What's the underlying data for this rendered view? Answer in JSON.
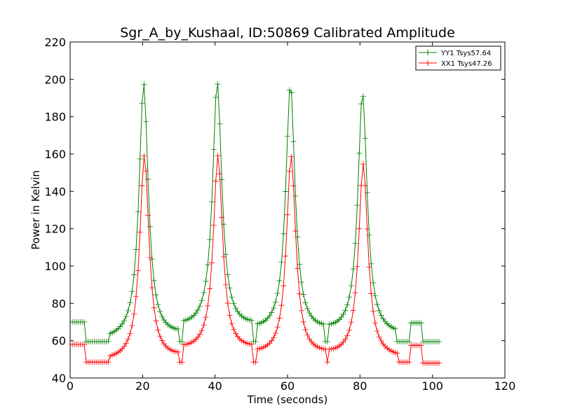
{
  "chart_data": {
    "type": "line",
    "title": "Sgr_A_by_Kushaal, ID:50869 Calibrated Amplitude",
    "xlabel": "Time (seconds)",
    "ylabel": "Power in Kelvin",
    "xlim": [
      0,
      120
    ],
    "ylim": [
      40,
      220
    ],
    "xticks": [
      0,
      20,
      40,
      60,
      80,
      100,
      120
    ],
    "yticks": [
      40,
      60,
      80,
      100,
      120,
      140,
      160,
      180,
      200,
      220
    ],
    "grid": false,
    "legend_position": "top-right",
    "marker": "+",
    "series": [
      {
        "name": "YY1 Tsys57.64",
        "color": "#008000",
        "base_levels": [
          {
            "x_start": 0.5,
            "x_end": 4,
            "value": 70
          },
          {
            "x_start": 4,
            "x_end": 94,
            "value": 59.5
          },
          {
            "x_start": 94,
            "x_end": 97,
            "value": 69.5
          },
          {
            "x_start": 97,
            "x_end": 102,
            "value": 59.5
          }
        ],
        "peaks": [
          {
            "x": 20.3,
            "value": 201,
            "base": 59.5
          },
          {
            "x": 40.6,
            "value": 201,
            "base": 64
          },
          {
            "x": 60.8,
            "value": 200,
            "base": 62
          },
          {
            "x": 80.7,
            "value": 196,
            "base": 62
          }
        ]
      },
      {
        "name": "XX1 Tsys47.26",
        "color": "#ff0000",
        "base_levels": [
          {
            "x_start": 0.5,
            "x_end": 4,
            "value": 58
          },
          {
            "x_start": 4,
            "x_end": 94,
            "value": 48.5
          },
          {
            "x_start": 94,
            "x_end": 97,
            "value": 57.5
          },
          {
            "x_start": 97,
            "x_end": 102,
            "value": 48
          }
        ],
        "peaks": [
          {
            "x": 20.5,
            "value": 162,
            "base": 48.5
          },
          {
            "x": 40.8,
            "value": 161,
            "base": 52.5
          },
          {
            "x": 61.0,
            "value": 161,
            "base": 50
          },
          {
            "x": 80.9,
            "value": 157,
            "base": 50
          }
        ]
      }
    ]
  }
}
